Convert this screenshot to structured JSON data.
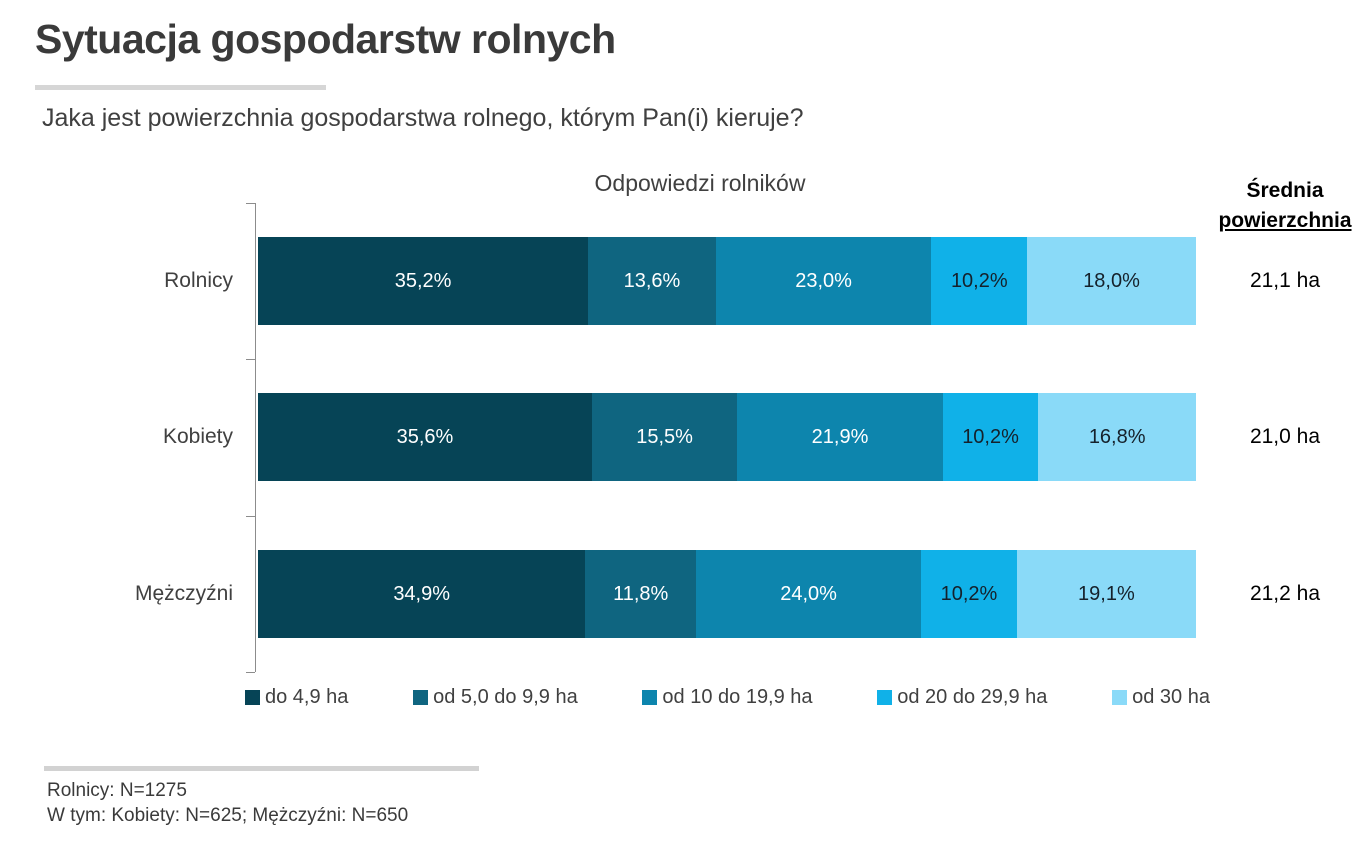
{
  "header": {
    "title": "Sytuacja gospodarstw rolnych",
    "question": "Jaka jest powierzchnia gospodarstwa rolnego, którym Pan(i) kieruje?"
  },
  "chart_data": {
    "type": "bar",
    "variant": "horizontal-stacked-100",
    "title": "Odpowiedzi rolników",
    "avg_header_line1": "Średnia",
    "avg_header_line2": "powierzchnia",
    "categories": [
      "Rolnicy",
      "Kobiety",
      "Mężczyźni"
    ],
    "series": [
      {
        "name": "do 4,9 ha",
        "color": "#064456",
        "label_color": "#ffffff",
        "values": [
          35.2,
          35.6,
          34.9
        ]
      },
      {
        "name": "od 5,0 do 9,9 ha",
        "color": "#0f6580",
        "label_color": "#ffffff",
        "values": [
          13.6,
          15.5,
          11.8
        ]
      },
      {
        "name": "od 10 do 19,9 ha",
        "color": "#0d85ad",
        "label_color": "#ffffff",
        "values": [
          23.0,
          21.9,
          24.0
        ]
      },
      {
        "name": "od 20 do 29,9 ha",
        "color": "#10b1e8",
        "label_color": "#15212b",
        "values": [
          10.2,
          10.2,
          10.2
        ]
      },
      {
        "name": "od 30 ha",
        "color": "#8adaf8",
        "label_color": "#15212b",
        "values": [
          18.0,
          16.8,
          19.1
        ]
      }
    ],
    "value_labels": [
      [
        "35,2%",
        "13,6%",
        "23,0%",
        "10,2%",
        "18,0%"
      ],
      [
        "35,6%",
        "15,5%",
        "21,9%",
        "10,2%",
        "16,8%"
      ],
      [
        "34,9%",
        "11,8%",
        "24,0%",
        "10,2%",
        "19,1%"
      ]
    ],
    "averages": [
      "21,1 ha",
      "21,0 ha",
      "21,2 ha"
    ],
    "xlim": [
      0,
      100
    ],
    "grid": false,
    "legend_position": "bottom"
  },
  "footer": {
    "line1": "Rolnicy: N=1275",
    "line2": "W tym: Kobiety: N=625; Mężczyźni: N=650"
  }
}
